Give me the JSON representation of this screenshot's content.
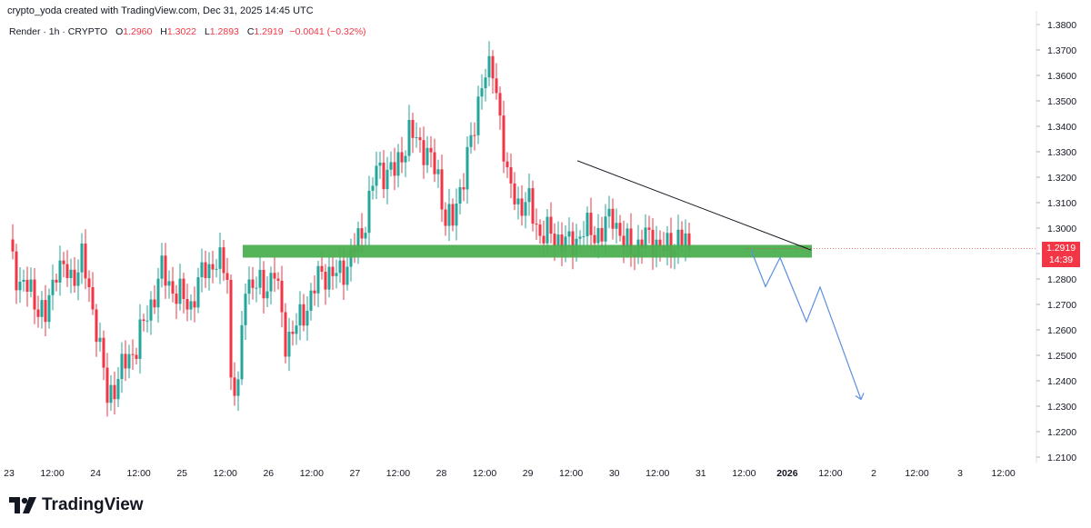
{
  "header": {
    "credit": "crypto_yoda created with TradingView.com, Dec 31, 2025 14:45 UTC"
  },
  "legend": {
    "symbol": "Render · 1h · CRYPTO",
    "open_label": "O",
    "open": "1.2960",
    "high_label": "H",
    "high": "1.3022",
    "low_label": "L",
    "low": "1.2893",
    "close_label": "C",
    "close": "1.2919",
    "change": "−0.0041 (−0.32%)"
  },
  "price_badge": {
    "price": "1.2919",
    "countdown": "14:39"
  },
  "branding": {
    "name": "TradingView"
  },
  "colors": {
    "up": "#26a69a",
    "down": "#f23645",
    "zone": "#4caf50",
    "projection": "#5b8fe0",
    "trendline": "#131722"
  },
  "chart_data": {
    "type": "candlestick",
    "timeframe": "1h",
    "y_ticks": [
      "1.3800",
      "1.3700",
      "1.3600",
      "1.3500",
      "1.3400",
      "1.3300",
      "1.3200",
      "1.3100",
      "1.3000",
      "1.2900",
      "1.2800",
      "1.2700",
      "1.2600",
      "1.2500",
      "1.2400",
      "1.2300",
      "1.2200",
      "1.2100"
    ],
    "x_ticks": [
      "23",
      "12:00",
      "24",
      "12:00",
      "25",
      "12:00",
      "26",
      "12:00",
      "27",
      "12:00",
      "28",
      "12:00",
      "29",
      "12:00",
      "30",
      "12:00",
      "31",
      "12:00",
      "2026",
      "12:00",
      "2",
      "12:00",
      "3",
      "12:00"
    ],
    "ylim": [
      1.205,
      1.382
    ],
    "anchors": [
      {
        "t": 0,
        "p": 1.293
      },
      {
        "t": 3,
        "p": 1.278
      },
      {
        "t": 6,
        "p": 1.275
      },
      {
        "t": 10,
        "p": 1.264
      },
      {
        "t": 13,
        "p": 1.286
      },
      {
        "t": 17,
        "p": 1.28
      },
      {
        "t": 20,
        "p": 1.288
      },
      {
        "t": 24,
        "p": 1.262
      },
      {
        "t": 27,
        "p": 1.233
      },
      {
        "t": 32,
        "p": 1.247
      },
      {
        "t": 35,
        "p": 1.254
      },
      {
        "t": 38,
        "p": 1.266
      },
      {
        "t": 42,
        "p": 1.283
      },
      {
        "t": 46,
        "p": 1.274
      },
      {
        "t": 50,
        "p": 1.27
      },
      {
        "t": 54,
        "p": 1.285
      },
      {
        "t": 57,
        "p": 1.286
      },
      {
        "t": 60,
        "p": 1.283
      },
      {
        "t": 61,
        "p": 1.24
      },
      {
        "t": 63,
        "p": 1.236
      },
      {
        "t": 65,
        "p": 1.28
      },
      {
        "t": 68,
        "p": 1.277
      },
      {
        "t": 70,
        "p": 1.276
      },
      {
        "t": 73,
        "p": 1.283
      },
      {
        "t": 76,
        "p": 1.256
      },
      {
        "t": 79,
        "p": 1.261
      },
      {
        "t": 83,
        "p": 1.273
      },
      {
        "t": 86,
        "p": 1.283
      },
      {
        "t": 90,
        "p": 1.281
      },
      {
        "t": 93,
        "p": 1.286
      },
      {
        "t": 97,
        "p": 1.298
      },
      {
        "t": 101,
        "p": 1.323
      },
      {
        "t": 106,
        "p": 1.322
      },
      {
        "t": 110,
        "p": 1.337
      },
      {
        "t": 114,
        "p": 1.332
      },
      {
        "t": 118,
        "p": 1.32
      },
      {
        "t": 120,
        "p": 1.304
      },
      {
        "t": 122,
        "p": 1.302
      },
      {
        "t": 124,
        "p": 1.316
      },
      {
        "t": 128,
        "p": 1.339
      },
      {
        "t": 130,
        "p": 1.36
      },
      {
        "t": 133,
        "p": 1.361
      },
      {
        "t": 135,
        "p": 1.345
      },
      {
        "t": 137,
        "p": 1.318
      },
      {
        "t": 140,
        "p": 1.31
      },
      {
        "t": 143,
        "p": 1.309
      },
      {
        "t": 146,
        "p": 1.298
      },
      {
        "t": 150,
        "p": 1.297
      },
      {
        "t": 154,
        "p": 1.293
      },
      {
        "t": 158,
        "p": 1.299
      },
      {
        "t": 163,
        "p": 1.298
      },
      {
        "t": 166,
        "p": 1.306
      },
      {
        "t": 169,
        "p": 1.293
      },
      {
        "t": 173,
        "p": 1.293
      },
      {
        "t": 176,
        "p": 1.297
      },
      {
        "t": 180,
        "p": 1.291
      },
      {
        "t": 184,
        "p": 1.296
      },
      {
        "t": 187,
        "p": 1.292
      }
    ],
    "last_price": 1.2919,
    "support_zone": {
      "top": 1.2934,
      "bottom": 1.2884
    },
    "trendline": [
      {
        "t": 141,
        "p": 1.3265
      },
      {
        "t": 201,
        "p": 1.2914
      }
    ],
    "projection": [
      {
        "t": 186,
        "p": 1.2915
      },
      {
        "t": 190,
        "p": 1.277
      },
      {
        "t": 194,
        "p": 1.2884
      },
      {
        "t": 201,
        "p": 1.2632
      },
      {
        "t": 204,
        "p": 1.2768
      },
      {
        "t": 214,
        "p": 1.2327
      }
    ]
  }
}
